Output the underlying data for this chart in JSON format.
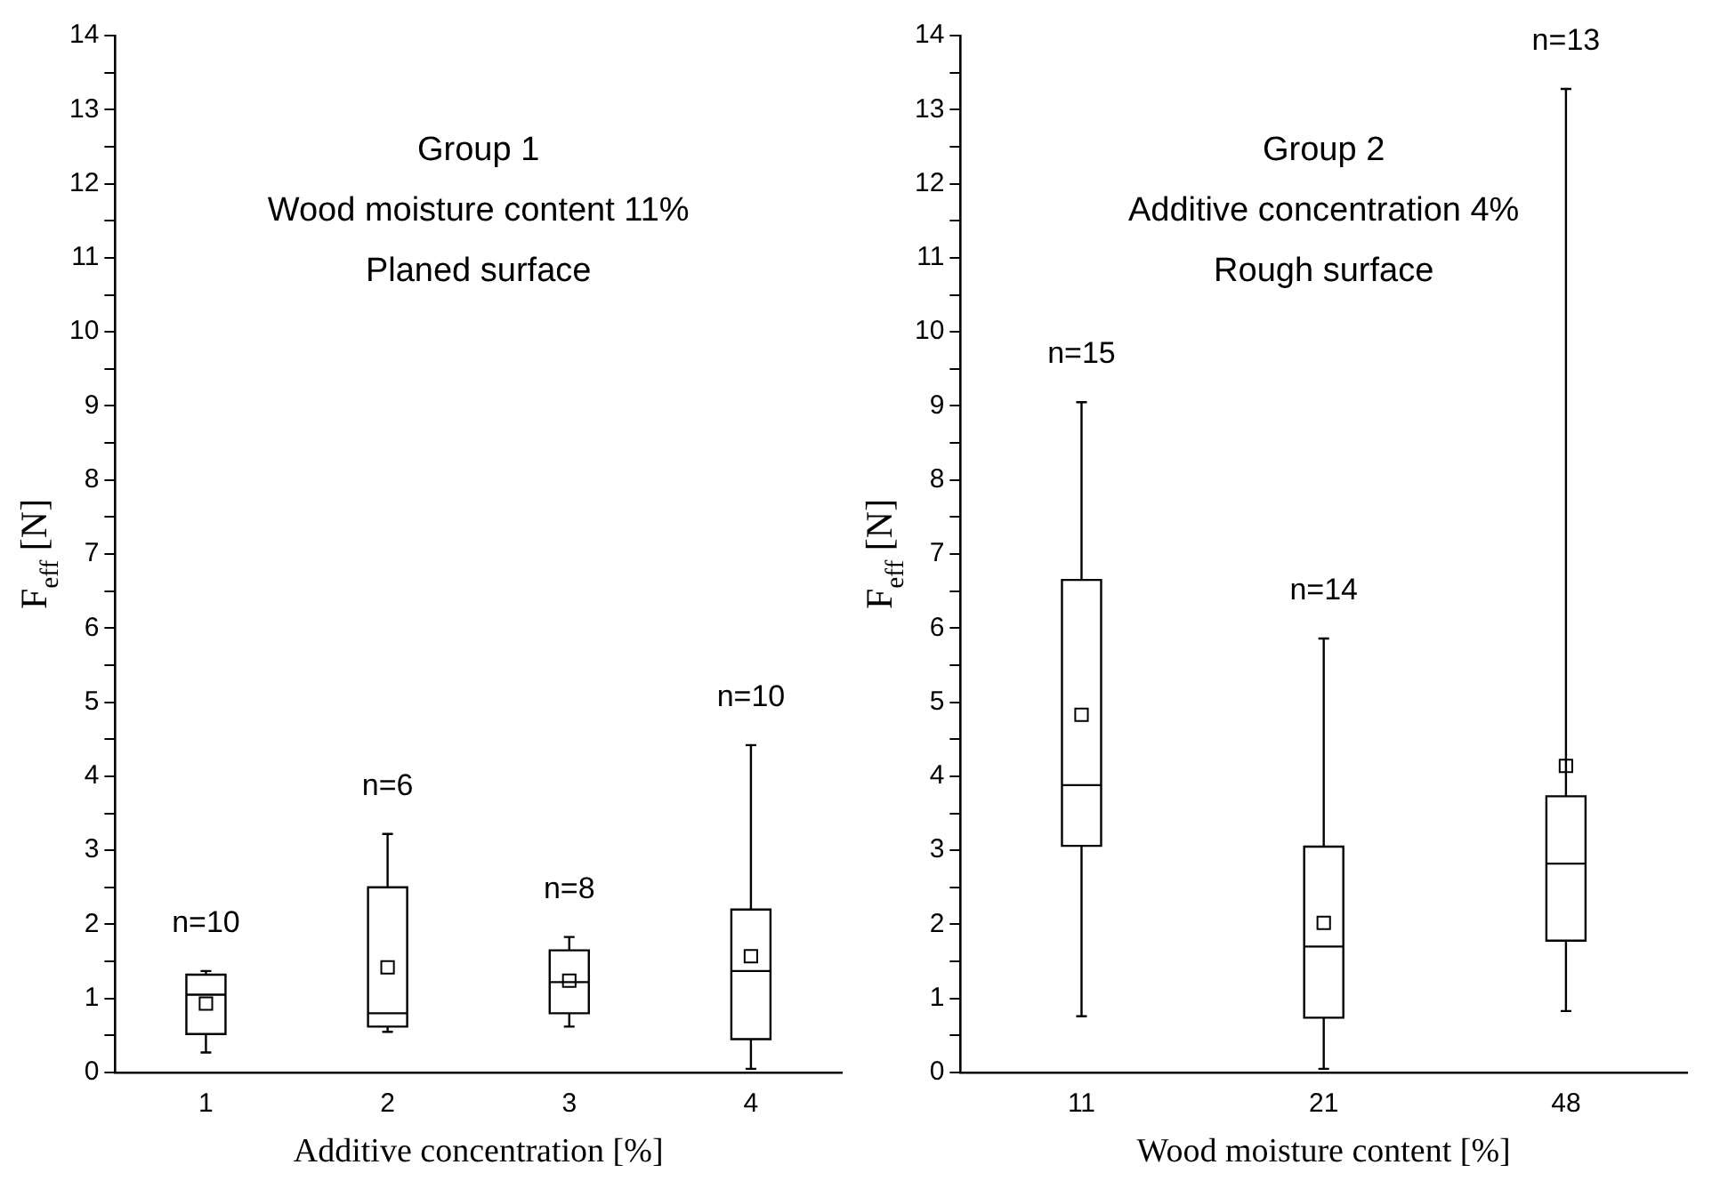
{
  "chart_data": [
    {
      "type": "box",
      "title": "Group 1",
      "subtitle": "Wood moisture content 11%\nPlaned surface",
      "xlabel": "Additive concentration [%]",
      "ylabel": "F$_{eff}$ [N]",
      "categories": [
        "1",
        "2",
        "3",
        "4"
      ],
      "color": "#000000",
      "grid": false,
      "legend": false,
      "boxes": [
        {
          "low": 0.27,
          "q1": 0.52,
          "median": 1.05,
          "q3": 1.32,
          "high": 1.37,
          "mean": 0.93
        },
        {
          "low": 0.55,
          "q1": 0.62,
          "median": 0.8,
          "q3": 2.5,
          "high": 3.22,
          "mean": 1.42
        },
        {
          "low": 0.62,
          "q1": 0.8,
          "median": 1.22,
          "q3": 1.65,
          "high": 1.83,
          "mean": 1.24
        },
        {
          "low": 0.05,
          "q1": 0.45,
          "median": 1.37,
          "q3": 2.2,
          "high": 4.42,
          "mean": 1.57
        }
      ],
      "ylim": [
        0,
        14
      ],
      "yticks": [
        0,
        {
          "value": 0.5,
          "label": null
        },
        1,
        {
          "value": 1.5,
          "label": null
        },
        2,
        {
          "value": 2.5,
          "label": null
        },
        3,
        {
          "value": 3.5,
          "label": null
        },
        4,
        {
          "value": 4.5,
          "label": null
        },
        5,
        {
          "value": 5.5,
          "label": null
        },
        6,
        {
          "value": 6.5,
          "label": null
        },
        7,
        {
          "value": 7.5,
          "label": null
        },
        8,
        {
          "value": 8.5,
          "label": null
        },
        9,
        {
          "value": 9.5,
          "label": null
        },
        10,
        {
          "value": 10.5,
          "label": null
        },
        11,
        {
          "value": 11.5,
          "label": null
        },
        12,
        {
          "value": 12.5,
          "label": null
        },
        13,
        {
          "value": 13.5,
          "label": null
        },
        14
      ],
      "annotations": [
        "n=10",
        "n=6",
        "n=8",
        "n=10"
      ]
    },
    {
      "type": "box",
      "title": "Group 2",
      "subtitle": "Additive concentration 4%\nRough surface",
      "xlabel": "Wood moisture content [%]",
      "ylabel": "F$_{eff}$ [N]",
      "categories": [
        "11",
        "21",
        "48"
      ],
      "color": "#000000",
      "grid": false,
      "legend": false,
      "boxes": [
        {
          "low": 0.76,
          "q1": 3.06,
          "median": 3.88,
          "q3": 6.65,
          "high": 9.05,
          "mean": 4.83
        },
        {
          "low": 0.05,
          "q1": 0.74,
          "median": 1.7,
          "q3": 3.05,
          "high": 5.86,
          "mean": 2.02
        },
        {
          "low": 0.83,
          "q1": 1.78,
          "median": 2.82,
          "q3": 3.73,
          "high": 13.28,
          "mean": 4.14
        }
      ],
      "ylim": [
        0,
        14
      ],
      "yticks": [
        0,
        {
          "value": 0.5,
          "label": null
        },
        1,
        {
          "value": 1.5,
          "label": null
        },
        2,
        {
          "value": 2.5,
          "label": null
        },
        3,
        {
          "value": 3.5,
          "label": null
        },
        4,
        {
          "value": 4.5,
          "label": null
        },
        5,
        {
          "value": 5.5,
          "label": null
        },
        6,
        {
          "value": 6.5,
          "label": null
        },
        7,
        {
          "value": 7.5,
          "label": null
        },
        8,
        {
          "value": 8.5,
          "label": null
        },
        9,
        {
          "value": 9.5,
          "label": null
        },
        10,
        {
          "value": 10.5,
          "label": null
        },
        11,
        {
          "value": 11.5,
          "label": null
        },
        12,
        {
          "value": 12.5,
          "label": null
        },
        13,
        {
          "value": 13.5,
          "label": null
        },
        14
      ],
      "annotations": [
        "n=15",
        "n=14",
        "n=13"
      ]
    }
  ]
}
